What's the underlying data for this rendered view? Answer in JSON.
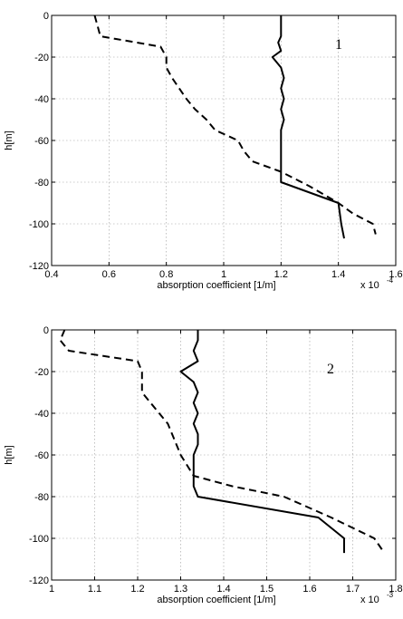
{
  "chart_data": [
    {
      "type": "line",
      "panel_label": "1",
      "xlabel": "absorption coefficient [1/m]",
      "ylabel": "h[m]",
      "x_multiplier_base": "x 10",
      "x_multiplier_exp": "-4",
      "xlim": [
        0.4,
        1.6
      ],
      "ylim": [
        -120,
        0
      ],
      "xticks": [
        "0.4",
        "0.6",
        "0.8",
        "1",
        "1.2",
        "1.4",
        "1.6"
      ],
      "yticks": [
        "0",
        "-20",
        "-40",
        "-60",
        "-80",
        "-100",
        "-120"
      ],
      "grid": true,
      "series": [
        {
          "style": "solid",
          "points": [
            [
              1.2,
              0
            ],
            [
              1.2,
              -5
            ],
            [
              1.2,
              -10
            ],
            [
              1.19,
              -13
            ],
            [
              1.2,
              -17
            ],
            [
              1.17,
              -20
            ],
            [
              1.2,
              -25
            ],
            [
              1.21,
              -30
            ],
            [
              1.2,
              -35
            ],
            [
              1.21,
              -40
            ],
            [
              1.2,
              -45
            ],
            [
              1.21,
              -50
            ],
            [
              1.2,
              -55
            ],
            [
              1.2,
              -60
            ],
            [
              1.2,
              -65
            ],
            [
              1.2,
              -70
            ],
            [
              1.2,
              -75
            ],
            [
              1.2,
              -80
            ],
            [
              1.3,
              -85
            ],
            [
              1.4,
              -90
            ],
            [
              1.41,
              -100
            ],
            [
              1.42,
              -107
            ]
          ]
        },
        {
          "style": "dashed",
          "points": [
            [
              0.55,
              0
            ],
            [
              0.56,
              -5
            ],
            [
              0.57,
              -10
            ],
            [
              0.78,
              -15
            ],
            [
              0.8,
              -20
            ],
            [
              0.8,
              -25
            ],
            [
              0.82,
              -30
            ],
            [
              0.87,
              -40
            ],
            [
              0.9,
              -45
            ],
            [
              0.94,
              -50
            ],
            [
              0.97,
              -55
            ],
            [
              1.05,
              -60
            ],
            [
              1.07,
              -65
            ],
            [
              1.1,
              -70
            ],
            [
              1.2,
              -75
            ],
            [
              1.3,
              -82
            ],
            [
              1.4,
              -90
            ],
            [
              1.45,
              -95
            ],
            [
              1.52,
              -100
            ],
            [
              1.53,
              -105
            ]
          ]
        }
      ]
    },
    {
      "type": "line",
      "panel_label": "2",
      "xlabel": "absorption coefficient [1/m]",
      "ylabel": "h[m]",
      "x_multiplier_base": "x 10",
      "x_multiplier_exp": "-3",
      "xlim": [
        1.0,
        1.8
      ],
      "ylim": [
        -120,
        0
      ],
      "xticks": [
        "1",
        "1.1",
        "1.2",
        "1.3",
        "1.4",
        "1.5",
        "1.6",
        "1.7",
        "1.8"
      ],
      "yticks": [
        "0",
        "-20",
        "-40",
        "-60",
        "-80",
        "-100",
        "-120"
      ],
      "grid": true,
      "series": [
        {
          "style": "solid",
          "points": [
            [
              1.34,
              0
            ],
            [
              1.34,
              -5
            ],
            [
              1.33,
              -10
            ],
            [
              1.34,
              -15
            ],
            [
              1.3,
              -20
            ],
            [
              1.33,
              -25
            ],
            [
              1.34,
              -30
            ],
            [
              1.33,
              -35
            ],
            [
              1.34,
              -40
            ],
            [
              1.33,
              -45
            ],
            [
              1.34,
              -50
            ],
            [
              1.34,
              -55
            ],
            [
              1.33,
              -60
            ],
            [
              1.33,
              -65
            ],
            [
              1.33,
              -70
            ],
            [
              1.33,
              -75
            ],
            [
              1.34,
              -80
            ],
            [
              1.62,
              -90
            ],
            [
              1.68,
              -100
            ],
            [
              1.68,
              -107
            ]
          ]
        },
        {
          "style": "dashed",
          "points": [
            [
              1.03,
              0
            ],
            [
              1.02,
              -5
            ],
            [
              1.04,
              -10
            ],
            [
              1.2,
              -15
            ],
            [
              1.21,
              -20
            ],
            [
              1.21,
              -25
            ],
            [
              1.21,
              -30
            ],
            [
              1.25,
              -40
            ],
            [
              1.27,
              -45
            ],
            [
              1.29,
              -55
            ],
            [
              1.3,
              -60
            ],
            [
              1.33,
              -70
            ],
            [
              1.42,
              -75
            ],
            [
              1.54,
              -80
            ],
            [
              1.65,
              -90
            ],
            [
              1.75,
              -100
            ],
            [
              1.77,
              -106
            ]
          ]
        }
      ]
    }
  ]
}
